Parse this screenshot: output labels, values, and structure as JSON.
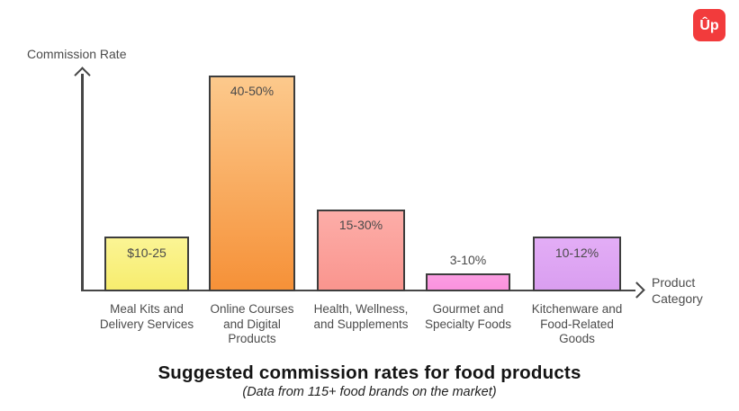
{
  "logo": {
    "glyph": "Ûp",
    "background_color": "#f23b3c",
    "glyph_color": "#ffffff"
  },
  "chart_data": {
    "type": "bar",
    "title": "Suggested commission rates for food products",
    "subtitle": "(Data from 115+ food brands on the market)",
    "xlabel": "Product\nCategory",
    "ylabel": "Commission Rate",
    "grid": false,
    "legend": false,
    "axis_color": "#464646",
    "bar_border_color": "#3d3d3d",
    "categories": [
      "Meal Kits and Delivery Services",
      "Online Courses and Digital Products",
      "Health, Wellness, and Supplements",
      "Gourmet and Specialty Foods",
      "Kitchenware and Food-Related Goods"
    ],
    "values": [
      "$10-25",
      "40-50%",
      "15-30%",
      "3-10%",
      "10-12%"
    ],
    "bars": [
      {
        "category_label": "Meal Kits and\nDelivery Services",
        "value_label": "$10-25",
        "range_low": 10,
        "range_high": 25,
        "unit": "$",
        "fill_top": "#fbf494",
        "fill_bottom": "#f7ed6e"
      },
      {
        "category_label": "Online Courses\nand Digital\nProducts",
        "value_label": "40-50%",
        "range_low": 40,
        "range_high": 50,
        "unit": "%",
        "fill_top": "#fcc98c",
        "fill_bottom": "#f69138"
      },
      {
        "category_label": "Health, Wellness,\nand Supplements",
        "value_label": "15-30%",
        "range_low": 15,
        "range_high": 30,
        "unit": "%",
        "fill_top": "#fcada8",
        "fill_bottom": "#fa958e"
      },
      {
        "category_label": "Gourmet and\nSpecialty Foods",
        "value_label": "3-10%",
        "range_low": 3,
        "range_high": 10,
        "unit": "%",
        "fill_top": "#fb9de2",
        "fill_bottom": "#fa92de"
      },
      {
        "category_label": "Kitchenware and\nFood-Related\nGoods",
        "value_label": "10-12%",
        "range_low": 10,
        "range_high": 12,
        "unit": "%",
        "fill_top": "#e3adf6",
        "fill_bottom": "#d99ef0"
      }
    ]
  }
}
